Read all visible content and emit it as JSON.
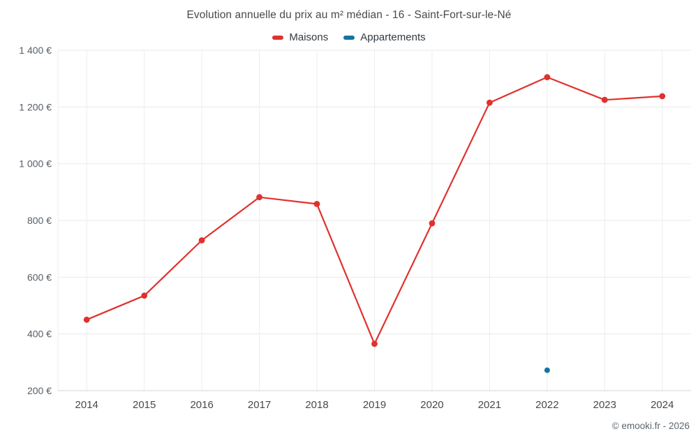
{
  "chart_data": {
    "type": "line",
    "title": "Evolution annuelle du prix au m² médian - 16 - Saint-Fort-sur-le-Né",
    "categories": [
      "2014",
      "2015",
      "2016",
      "2017",
      "2018",
      "2019",
      "2020",
      "2021",
      "2022",
      "2023",
      "2024"
    ],
    "series": [
      {
        "name": "Maisons",
        "color": "#e0312e",
        "values": [
          450,
          535,
          730,
          882,
          858,
          365,
          790,
          1215,
          1305,
          1225,
          1238
        ]
      },
      {
        "name": "Appartements",
        "color": "#1673a0",
        "values": [
          null,
          null,
          null,
          null,
          null,
          null,
          null,
          null,
          272,
          null,
          null
        ]
      }
    ],
    "ylim": [
      200,
      1400
    ],
    "y_ticks": [
      {
        "value": 200,
        "label": "200 €"
      },
      {
        "value": 400,
        "label": "400 €"
      },
      {
        "value": 600,
        "label": "600 €"
      },
      {
        "value": 800,
        "label": "800 €"
      },
      {
        "value": 1000,
        "label": "1 000 €"
      },
      {
        "value": 1200,
        "label": "1 200 €"
      },
      {
        "value": 1400,
        "label": "1 400 €"
      }
    ],
    "grid": true,
    "legend_position": "top"
  },
  "footer": {
    "copyright": "© emooki.fr - 2026"
  }
}
